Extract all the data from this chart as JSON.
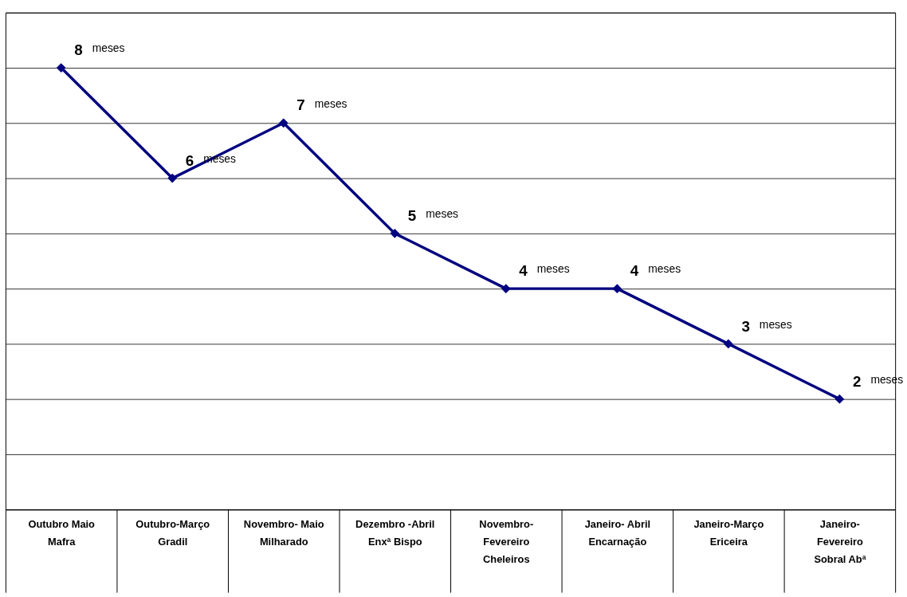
{
  "chart_data": {
    "type": "line",
    "categories": [
      "Outubro Maio\n\nMafra",
      "Outubro-Março\n\nGradil",
      "Novembro- Maio\n\nMilharado",
      "Dezembro -Abril\n\nEnxª Bispo",
      "Novembro-\nFevereiro\nCheleiros",
      "Janeiro- Abril\n\nEncarnação",
      "Janeiro-Março\n\nEriceira",
      "Janeiro-\nFevereiro\nSobral Abª"
    ],
    "series": [
      {
        "color": "#000080",
        "values": [
          8,
          6,
          7,
          5,
          4,
          4,
          3,
          2
        ]
      }
    ],
    "data_labels": true,
    "annotations": [
      "meses",
      "meses",
      "meses",
      "meses",
      "meses",
      "meses",
      "meses",
      "meses"
    ],
    "ylim": [
      0,
      9
    ],
    "yticks": [
      {
        "value": 0,
        "label": null
      },
      {
        "value": 1,
        "label": null
      },
      {
        "value": 2,
        "label": null
      },
      {
        "value": 3,
        "label": null
      },
      {
        "value": 4,
        "label": null
      },
      {
        "value": 5,
        "label": null
      },
      {
        "value": 6,
        "label": null
      },
      {
        "value": 7,
        "label": null
      },
      {
        "value": 8,
        "label": null
      },
      {
        "value": 9,
        "label": null
      }
    ],
    "grid": "y",
    "tick_labels": "x",
    "marker": "diamond",
    "line_style": "solid"
  }
}
